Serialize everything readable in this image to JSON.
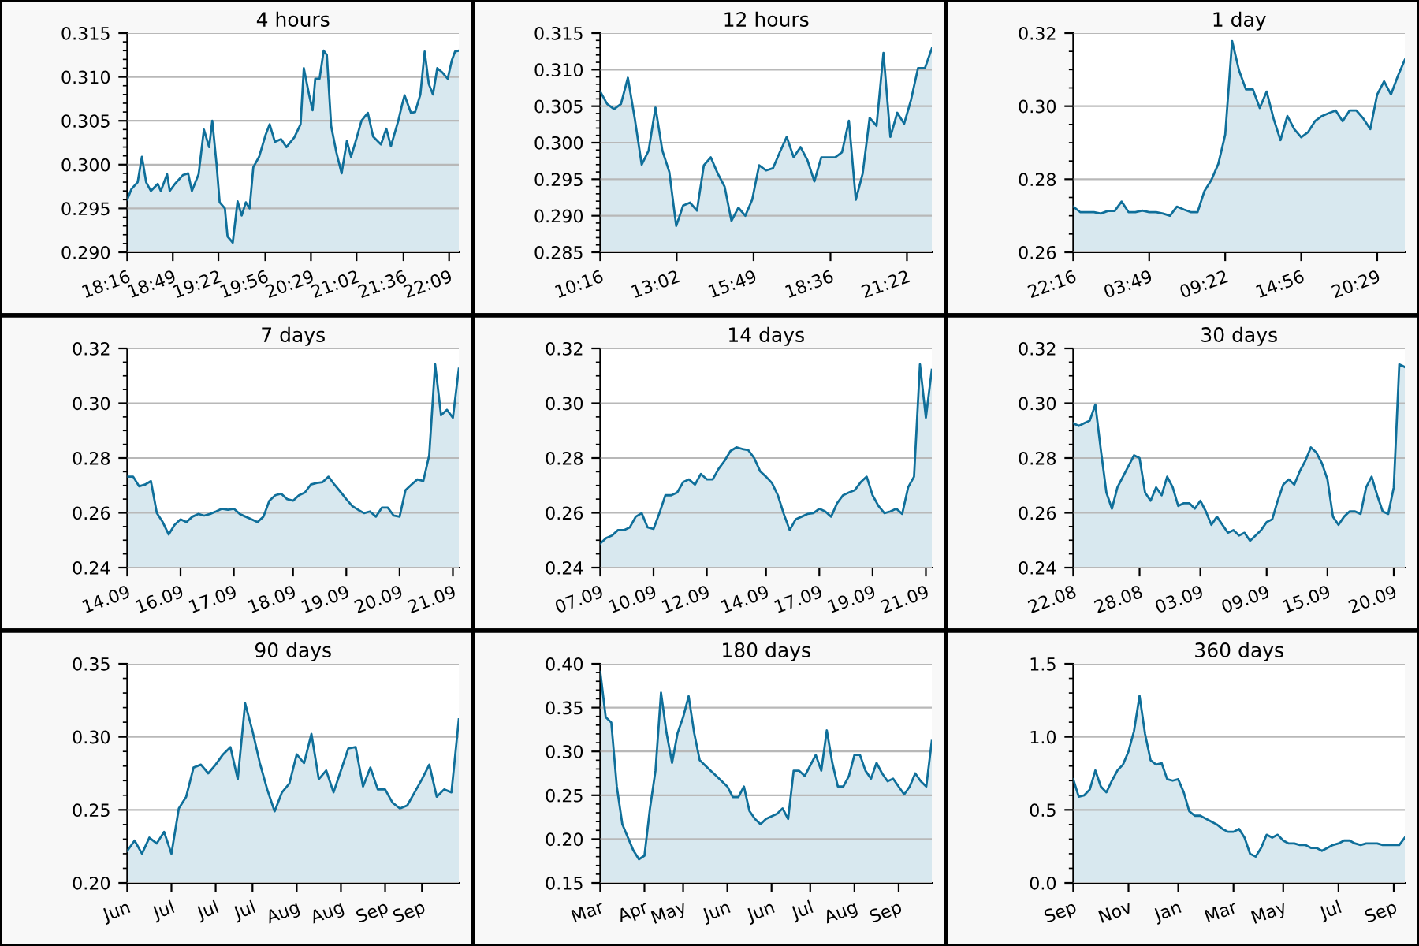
{
  "chart_data": [
    {
      "type": "area",
      "title": "4 hours",
      "grid": "y",
      "xlim": [
        18.267,
        22.267
      ],
      "xticks": [
        {
          "value": 18.267,
          "label": "18:16"
        },
        {
          "value": 18.817,
          "label": "18:49"
        },
        {
          "value": 19.367,
          "label": "19:22"
        },
        {
          "value": 19.933,
          "label": "19:56"
        },
        {
          "value": 20.483,
          "label": "20:29"
        },
        {
          "value": 21.033,
          "label": "21:02"
        },
        {
          "value": 21.6,
          "label": "21:36"
        },
        {
          "value": 22.15,
          "label": "22:09"
        }
      ],
      "ylim": [
        0.29,
        0.315
      ],
      "yticks": [
        {
          "value": 0.29,
          "label": "0.290"
        },
        {
          "value": 0.295,
          "label": "0.295"
        },
        {
          "value": 0.3,
          "label": "0.300"
        },
        {
          "value": 0.305,
          "label": "0.305"
        },
        {
          "value": 0.31,
          "label": "0.310"
        },
        {
          "value": 0.315,
          "label": "0.315"
        }
      ],
      "series": [
        {
          "color": "#0f6f9a",
          "x": [
            18.267,
            18.317,
            18.393,
            18.444,
            18.495,
            18.552,
            18.635,
            18.672,
            18.748,
            18.78,
            18.843,
            18.938,
            19.002,
            19.047,
            19.128,
            19.192,
            19.255,
            19.293,
            19.345,
            19.382,
            19.445,
            19.477,
            19.54,
            19.598,
            19.648,
            19.698,
            19.743,
            19.788,
            19.858,
            19.933,
            19.985,
            20.048,
            20.123,
            20.187,
            20.282,
            20.358,
            20.397,
            20.46,
            20.503,
            20.535,
            20.587,
            20.637,
            20.675,
            20.727,
            20.79,
            20.853,
            20.917,
            20.967,
            21.03,
            21.093,
            21.17,
            21.233,
            21.328,
            21.392,
            21.448,
            21.537,
            21.582,
            21.613,
            21.69,
            21.74,
            21.803,
            21.855,
            21.905,
            21.955,
            22.007,
            22.07,
            22.133,
            22.183,
            22.222,
            22.267
          ],
          "values": [
            0.296,
            0.2972,
            0.298,
            0.3009,
            0.298,
            0.297,
            0.2978,
            0.297,
            0.2989,
            0.297,
            0.2978,
            0.2988,
            0.299,
            0.297,
            0.2989,
            0.304,
            0.302,
            0.305,
            0.3,
            0.2957,
            0.295,
            0.2918,
            0.2911,
            0.2958,
            0.2942,
            0.2957,
            0.295,
            0.2997,
            0.3009,
            0.3033,
            0.3046,
            0.3026,
            0.3029,
            0.302,
            0.3031,
            0.3046,
            0.311,
            0.308,
            0.3062,
            0.3098,
            0.3098,
            0.313,
            0.3125,
            0.3044,
            0.3014,
            0.299,
            0.3027,
            0.3009,
            0.3029,
            0.305,
            0.3059,
            0.3032,
            0.3023,
            0.3041,
            0.3021,
            0.305,
            0.3068,
            0.3079,
            0.3059,
            0.306,
            0.308,
            0.3129,
            0.3092,
            0.308,
            0.311,
            0.3105,
            0.3098,
            0.3119,
            0.3129,
            0.313
          ]
        }
      ]
    },
    {
      "type": "area",
      "title": "12 hours",
      "grid": "y",
      "xlim": [
        10.267,
        22.267
      ],
      "xticks": [
        {
          "value": 10.267,
          "label": "10:16"
        },
        {
          "value": 13.033,
          "label": "13:02"
        },
        {
          "value": 15.817,
          "label": "15:49"
        },
        {
          "value": 18.6,
          "label": "18:36"
        },
        {
          "value": 21.367,
          "label": "21:22"
        }
      ],
      "ylim": [
        0.285,
        0.315
      ],
      "yticks": [
        {
          "value": 0.285,
          "label": "0.285"
        },
        {
          "value": 0.29,
          "label": "0.290"
        },
        {
          "value": 0.295,
          "label": "0.295"
        },
        {
          "value": 0.3,
          "label": "0.300"
        },
        {
          "value": 0.305,
          "label": "0.305"
        },
        {
          "value": 0.31,
          "label": "0.310"
        },
        {
          "value": 0.315,
          "label": "0.315"
        }
      ],
      "series": [
        {
          "color": "#0f6f9a",
          "x": [
            10.267,
            10.517,
            10.767,
            11.017,
            11.267,
            11.517,
            11.767,
            12.017,
            12.267,
            12.517,
            12.767,
            13.017,
            13.267,
            13.517,
            13.767,
            14.017,
            14.267,
            14.517,
            14.767,
            15.017,
            15.267,
            15.517,
            15.767,
            16.017,
            16.267,
            16.517,
            16.767,
            17.017,
            17.267,
            17.517,
            17.767,
            18.017,
            18.267,
            18.517,
            18.767,
            19.017,
            19.267,
            19.517,
            19.767,
            20.017,
            20.267,
            20.517,
            20.767,
            21.017,
            21.267,
            21.517,
            21.767,
            22.017,
            22.267
          ],
          "values": [
            0.307,
            0.3053,
            0.3046,
            0.3053,
            0.3089,
            0.3033,
            0.297,
            0.2989,
            0.3048,
            0.2989,
            0.296,
            0.2886,
            0.2914,
            0.2918,
            0.2907,
            0.2969,
            0.298,
            0.2958,
            0.294,
            0.2893,
            0.2911,
            0.29,
            0.2922,
            0.2969,
            0.2962,
            0.2965,
            0.2987,
            0.3008,
            0.298,
            0.2994,
            0.2976,
            0.2947,
            0.298,
            0.298,
            0.298,
            0.2987,
            0.303,
            0.2922,
            0.2958,
            0.3034,
            0.3023,
            0.3123,
            0.3008,
            0.3041,
            0.3026,
            0.3059,
            0.3102,
            0.3102,
            0.3129
          ]
        }
      ]
    },
    {
      "type": "area",
      "title": "1 day",
      "grid": "y",
      "categories": [
        "22:16",
        null,
        null,
        null,
        null,
        null,
        null,
        null,
        null,
        null,
        null,
        "03:49",
        null,
        null,
        null,
        null,
        null,
        null,
        null,
        null,
        null,
        null,
        "09:22",
        null,
        null,
        null,
        null,
        null,
        null,
        null,
        null,
        null,
        null,
        "14:56",
        null,
        null,
        null,
        null,
        null,
        null,
        null,
        null,
        null,
        null,
        "20:29",
        null,
        null,
        null,
        null
      ],
      "ylim": [
        0.26,
        0.32
      ],
      "yticks": [
        {
          "value": 0.26,
          "label": "0.26"
        },
        {
          "value": 0.28,
          "label": "0.28"
        },
        {
          "value": 0.3,
          "label": "0.30"
        },
        {
          "value": 0.32,
          "label": "0.32"
        }
      ],
      "series": [
        {
          "color": "#0f6f9a",
          "values": [
            0.2725,
            0.271,
            0.271,
            0.271,
            0.2706,
            0.2713,
            0.2713,
            0.2739,
            0.271,
            0.271,
            0.2714,
            0.271,
            0.271,
            0.2706,
            0.27,
            0.2725,
            0.2717,
            0.271,
            0.271,
            0.2768,
            0.2798,
            0.2842,
            0.2922,
            0.3178,
            0.3098,
            0.3046,
            0.3046,
            0.2995,
            0.304,
            0.2966,
            0.2907,
            0.2973,
            0.2937,
            0.2915,
            0.2929,
            0.2959,
            0.2973,
            0.2981,
            0.2988,
            0.2959,
            0.2988,
            0.2988,
            0.2966,
            0.2937,
            0.3032,
            0.3068,
            0.3032,
            0.3083,
            0.3127
          ]
        }
      ]
    },
    {
      "type": "area",
      "title": "7 days",
      "grid": "y",
      "categories": [
        "14.09",
        null,
        null,
        null,
        null,
        null,
        null,
        null,
        null,
        "16.09",
        null,
        null,
        null,
        null,
        null,
        null,
        null,
        null,
        "17.09",
        null,
        null,
        null,
        null,
        null,
        null,
        null,
        null,
        null,
        "18.09",
        null,
        null,
        null,
        null,
        null,
        null,
        null,
        null,
        "19.09",
        null,
        null,
        null,
        null,
        null,
        null,
        null,
        null,
        "20.09",
        null,
        null,
        null,
        null,
        null,
        null,
        null,
        null,
        "21.09",
        null
      ],
      "ylim": [
        0.24,
        0.32
      ],
      "yticks": [
        {
          "value": 0.24,
          "label": "0.24"
        },
        {
          "value": 0.26,
          "label": "0.26"
        },
        {
          "value": 0.28,
          "label": "0.28"
        },
        {
          "value": 0.3,
          "label": "0.30"
        },
        {
          "value": 0.32,
          "label": "0.32"
        }
      ],
      "series": [
        {
          "color": "#0f6f9a",
          "values": [
            0.2732,
            0.2732,
            0.2697,
            0.2703,
            0.2716,
            0.2599,
            0.2566,
            0.2521,
            0.2556,
            0.2576,
            0.2566,
            0.2586,
            0.2596,
            0.259,
            0.2596,
            0.2605,
            0.2615,
            0.2611,
            0.2615,
            0.2596,
            0.2586,
            0.2576,
            0.2566,
            0.2586,
            0.2644,
            0.2664,
            0.267,
            0.265,
            0.2644,
            0.2664,
            0.2674,
            0.2703,
            0.2709,
            0.2712,
            0.2732,
            0.2703,
            0.2677,
            0.265,
            0.2625,
            0.2611,
            0.2599,
            0.2605,
            0.2586,
            0.2619,
            0.2619,
            0.259,
            0.2586,
            0.2683,
            0.2703,
            0.2722,
            0.2716,
            0.281,
            0.3142,
            0.2956,
            0.2976,
            0.2947,
            0.3126
          ]
        }
      ]
    },
    {
      "type": "area",
      "title": "14 days",
      "grid": "y",
      "categories": [
        "07.09",
        null,
        null,
        null,
        null,
        null,
        null,
        null,
        null,
        "10.09",
        null,
        null,
        null,
        null,
        null,
        null,
        null,
        null,
        "12.09",
        null,
        null,
        null,
        null,
        null,
        null,
        null,
        null,
        null,
        "14.09",
        null,
        null,
        null,
        null,
        null,
        null,
        null,
        null,
        "17.09",
        null,
        null,
        null,
        null,
        null,
        null,
        null,
        null,
        "19.09",
        null,
        null,
        null,
        null,
        null,
        null,
        null,
        null,
        "21.09",
        null
      ],
      "ylim": [
        0.24,
        0.32
      ],
      "yticks": [
        {
          "value": 0.24,
          "label": "0.24"
        },
        {
          "value": 0.26,
          "label": "0.26"
        },
        {
          "value": 0.28,
          "label": "0.28"
        },
        {
          "value": 0.3,
          "label": "0.30"
        },
        {
          "value": 0.32,
          "label": "0.32"
        }
      ],
      "series": [
        {
          "color": "#0f6f9a",
          "values": [
            0.2488,
            0.2508,
            0.2517,
            0.2537,
            0.2537,
            0.2547,
            0.2586,
            0.2599,
            0.2547,
            0.2541,
            0.2599,
            0.2664,
            0.2664,
            0.2674,
            0.2712,
            0.2722,
            0.2703,
            0.2742,
            0.2722,
            0.2722,
            0.2761,
            0.279,
            0.2826,
            0.2839,
            0.2833,
            0.2829,
            0.28,
            0.2752,
            0.2732,
            0.2709,
            0.2664,
            0.2596,
            0.2537,
            0.2576,
            0.2586,
            0.2596,
            0.2599,
            0.2615,
            0.2605,
            0.2586,
            0.2635,
            0.2664,
            0.2674,
            0.2683,
            0.2712,
            0.2732,
            0.2664,
            0.2625,
            0.2599,
            0.2605,
            0.2615,
            0.2596,
            0.2693,
            0.2732,
            0.3142,
            0.2947,
            0.3122
          ]
        }
      ]
    },
    {
      "type": "area",
      "title": "30 days",
      "grid": "y",
      "categories": [
        "22.08",
        null,
        null,
        null,
        null,
        null,
        null,
        null,
        null,
        null,
        null,
        null,
        "28.08",
        null,
        null,
        null,
        null,
        null,
        null,
        null,
        null,
        null,
        null,
        "03.09",
        null,
        null,
        null,
        null,
        null,
        null,
        null,
        null,
        null,
        null,
        null,
        "09.09",
        null,
        null,
        null,
        null,
        null,
        null,
        null,
        null,
        null,
        null,
        "15.09",
        null,
        null,
        null,
        null,
        null,
        null,
        null,
        null,
        null,
        null,
        null,
        "20.09",
        null,
        null
      ],
      "ylim": [
        0.24,
        0.32
      ],
      "yticks": [
        {
          "value": 0.24,
          "label": "0.24"
        },
        {
          "value": 0.26,
          "label": "0.26"
        },
        {
          "value": 0.28,
          "label": "0.28"
        },
        {
          "value": 0.3,
          "label": "0.30"
        },
        {
          "value": 0.32,
          "label": "0.32"
        }
      ],
      "series": [
        {
          "color": "#0f6f9a",
          "values": [
            0.2927,
            0.2917,
            0.2927,
            0.2937,
            0.2995,
            0.2829,
            0.2674,
            0.2615,
            0.2693,
            0.2732,
            0.2771,
            0.281,
            0.28,
            0.2674,
            0.2644,
            0.2693,
            0.2664,
            0.2732,
            0.2693,
            0.2625,
            0.2635,
            0.2635,
            0.2615,
            0.2644,
            0.2605,
            0.2556,
            0.2586,
            0.2556,
            0.2527,
            0.2537,
            0.2517,
            0.2527,
            0.2498,
            0.2517,
            0.2537,
            0.2566,
            0.2576,
            0.2644,
            0.2703,
            0.2722,
            0.2703,
            0.2752,
            0.279,
            0.2839,
            0.282,
            0.2781,
            0.2722,
            0.2586,
            0.2556,
            0.2586,
            0.2605,
            0.2605,
            0.2596,
            0.2693,
            0.2732,
            0.2664,
            0.2605,
            0.2596,
            0.2693,
            0.3142,
            0.3132
          ]
        }
      ]
    },
    {
      "type": "area",
      "title": "90 days",
      "grid": "y",
      "categories": [
        "Jun",
        null,
        null,
        null,
        null,
        null,
        "Jul",
        null,
        null,
        null,
        null,
        null,
        "Jul",
        null,
        null,
        null,
        null,
        "Jul",
        null,
        null,
        null,
        null,
        null,
        "Aug",
        null,
        null,
        null,
        null,
        null,
        "Aug",
        null,
        null,
        null,
        null,
        null,
        "Sep",
        null,
        null,
        null,
        null,
        "Sep",
        null,
        null,
        null,
        null,
        null
      ],
      "ylim": [
        0.2,
        0.35
      ],
      "yticks": [
        {
          "value": 0.2,
          "label": "0.20"
        },
        {
          "value": 0.25,
          "label": "0.25"
        },
        {
          "value": 0.3,
          "label": "0.30"
        },
        {
          "value": 0.35,
          "label": "0.35"
        }
      ],
      "series": [
        {
          "color": "#0f6f9a",
          "values": [
            0.222,
            0.229,
            0.22,
            0.231,
            0.227,
            0.235,
            0.22,
            0.251,
            0.259,
            0.279,
            0.281,
            0.275,
            0.281,
            0.288,
            0.293,
            0.271,
            0.323,
            0.304,
            0.282,
            0.264,
            0.249,
            0.262,
            0.268,
            0.288,
            0.282,
            0.302,
            0.271,
            0.277,
            0.262,
            0.277,
            0.292,
            0.293,
            0.266,
            0.279,
            0.264,
            0.264,
            0.255,
            0.251,
            0.253,
            0.262,
            0.271,
            0.281,
            0.259,
            0.264,
            0.262,
            0.312
          ]
        }
      ]
    },
    {
      "type": "area",
      "title": "180 days",
      "grid": "y",
      "categories": [
        "Mar",
        null,
        null,
        null,
        null,
        null,
        null,
        null,
        "Apr",
        null,
        null,
        null,
        null,
        null,
        null,
        "May",
        null,
        null,
        null,
        null,
        null,
        null,
        null,
        "Jun",
        null,
        null,
        null,
        null,
        null,
        null,
        null,
        "Jun",
        null,
        null,
        null,
        null,
        null,
        null,
        "Jul",
        null,
        null,
        null,
        null,
        null,
        null,
        null,
        "Aug",
        null,
        null,
        null,
        null,
        null,
        null,
        null,
        "Sep",
        null,
        null,
        null,
        null,
        null,
        null
      ],
      "ylim": [
        0.15,
        0.4
      ],
      "yticks": [
        {
          "value": 0.15,
          "label": "0.15"
        },
        {
          "value": 0.2,
          "label": "0.20"
        },
        {
          "value": 0.25,
          "label": "0.25"
        },
        {
          "value": 0.3,
          "label": "0.30"
        },
        {
          "value": 0.35,
          "label": "0.35"
        },
        {
          "value": 0.4,
          "label": "0.40"
        }
      ],
      "series": [
        {
          "color": "#0f6f9a",
          "values": [
            0.391,
            0.339,
            0.333,
            0.26,
            0.217,
            0.202,
            0.187,
            0.177,
            0.181,
            0.235,
            0.278,
            0.367,
            0.321,
            0.287,
            0.321,
            0.339,
            0.363,
            0.321,
            0.29,
            0.284,
            0.278,
            0.272,
            0.266,
            0.26,
            0.248,
            0.248,
            0.26,
            0.232,
            0.223,
            0.217,
            0.223,
            0.226,
            0.229,
            0.235,
            0.223,
            0.278,
            0.278,
            0.272,
            0.284,
            0.296,
            0.278,
            0.324,
            0.287,
            0.26,
            0.26,
            0.272,
            0.296,
            0.296,
            0.278,
            0.269,
            0.287,
            0.275,
            0.266,
            0.269,
            0.26,
            0.251,
            0.26,
            0.275,
            0.266,
            0.26,
            0.312
          ]
        }
      ]
    },
    {
      "type": "area",
      "title": "360 days",
      "grid": "y",
      "categories": [
        "Sep",
        null,
        null,
        null,
        null,
        null,
        null,
        null,
        null,
        null,
        "Nov",
        null,
        null,
        null,
        null,
        null,
        null,
        null,
        null,
        "Jan",
        null,
        null,
        null,
        null,
        null,
        null,
        null,
        null,
        null,
        "Mar",
        null,
        null,
        null,
        null,
        null,
        null,
        null,
        null,
        "May",
        null,
        null,
        null,
        null,
        null,
        null,
        null,
        null,
        null,
        "Jul",
        null,
        null,
        null,
        null,
        null,
        null,
        null,
        null,
        null,
        "Sep",
        null,
        null
      ],
      "ylim": [
        0.0,
        1.5
      ],
      "yticks": [
        {
          "value": 0.0,
          "label": "0.0"
        },
        {
          "value": 0.5,
          "label": "0.5"
        },
        {
          "value": 1.0,
          "label": "1.0"
        },
        {
          "value": 1.5,
          "label": "1.5"
        }
      ],
      "series": [
        {
          "color": "#0f6f9a",
          "values": [
            0.71,
            0.59,
            0.6,
            0.64,
            0.77,
            0.66,
            0.62,
            0.7,
            0.77,
            0.81,
            0.9,
            1.04,
            1.28,
            1.02,
            0.84,
            0.81,
            0.82,
            0.71,
            0.7,
            0.71,
            0.62,
            0.49,
            0.46,
            0.46,
            0.44,
            0.42,
            0.4,
            0.37,
            0.35,
            0.35,
            0.37,
            0.31,
            0.2,
            0.18,
            0.24,
            0.33,
            0.31,
            0.33,
            0.29,
            0.27,
            0.27,
            0.26,
            0.26,
            0.24,
            0.24,
            0.22,
            0.24,
            0.26,
            0.27,
            0.29,
            0.29,
            0.27,
            0.26,
            0.27,
            0.27,
            0.27,
            0.26,
            0.26,
            0.26,
            0.26,
            0.31
          ]
        }
      ]
    }
  ]
}
